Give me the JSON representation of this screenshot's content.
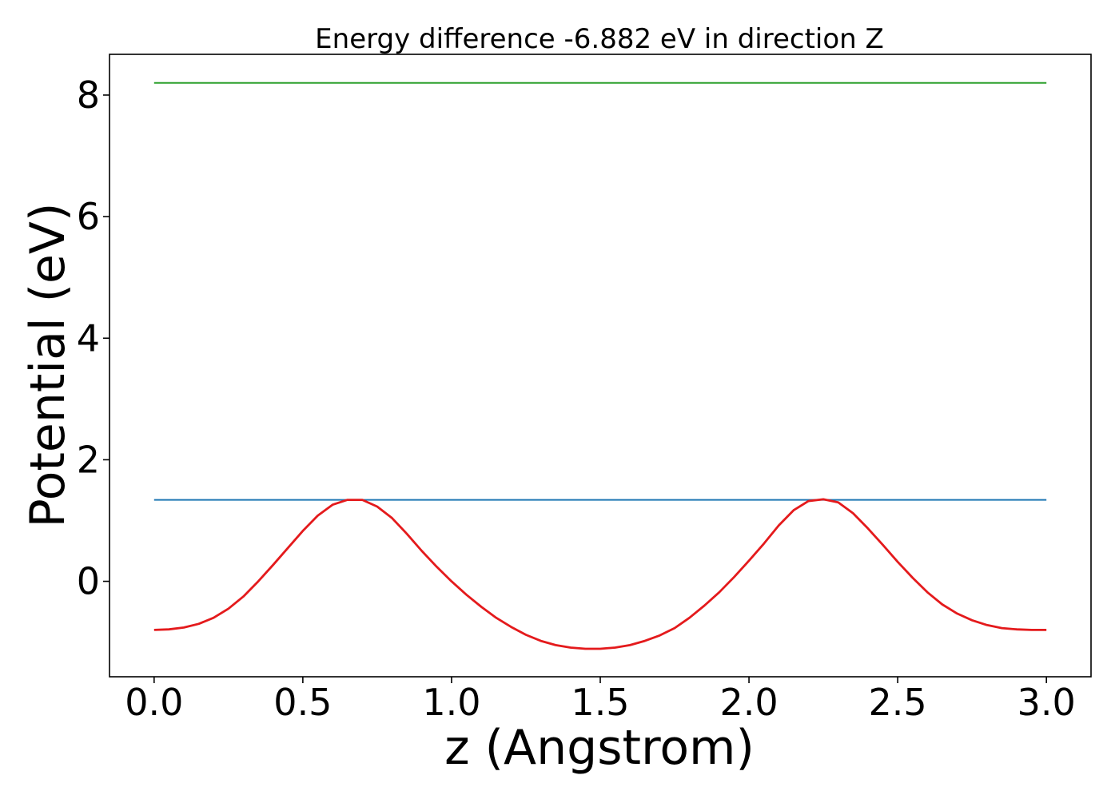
{
  "chart_data": {
    "type": "line",
    "title": "Energy difference -6.882 eV in direction Z",
    "xlabel": "z (Angstrom)",
    "ylabel": "Potential (eV)",
    "xlim": [
      -0.15,
      3.15
    ],
    "ylim": [
      -1.57,
      8.67
    ],
    "grid": false,
    "x_ticks": [
      0.0,
      0.5,
      1.0,
      1.5,
      2.0,
      2.5,
      3.0
    ],
    "x_tick_labels": [
      "0.0",
      "0.5",
      "1.0",
      "1.5",
      "2.0",
      "2.5",
      "3.0"
    ],
    "y_ticks": [
      0,
      2,
      4,
      6,
      8
    ],
    "y_tick_labels": [
      "0",
      "2",
      "4",
      "6",
      "8"
    ],
    "series": [
      {
        "color": "#2ca02c",
        "x": [
          0.0,
          3.0
        ],
        "y": [
          8.2,
          8.2
        ]
      },
      {
        "color": "#1f77b4",
        "x": [
          0.0,
          3.0
        ],
        "y": [
          1.34,
          1.34
        ]
      },
      {
        "color": "#e41a1c",
        "x": [
          0.0,
          0.05,
          0.1,
          0.15,
          0.2,
          0.25,
          0.3,
          0.35,
          0.4,
          0.45,
          0.5,
          0.55,
          0.6,
          0.65,
          0.7,
          0.75,
          0.8,
          0.85,
          0.9,
          0.95,
          1.0,
          1.05,
          1.1,
          1.15,
          1.2,
          1.25,
          1.3,
          1.35,
          1.4,
          1.45,
          1.5,
          1.55,
          1.6,
          1.65,
          1.7,
          1.75,
          1.8,
          1.85,
          1.9,
          1.95,
          2.0,
          2.05,
          2.1,
          2.15,
          2.2,
          2.25,
          2.3,
          2.35,
          2.4,
          2.45,
          2.5,
          2.55,
          2.6,
          2.65,
          2.7,
          2.75,
          2.8,
          2.85,
          2.9,
          2.95,
          3.0
        ],
        "y": [
          -0.8,
          -0.79,
          -0.76,
          -0.7,
          -0.6,
          -0.45,
          -0.25,
          0.0,
          0.27,
          0.55,
          0.83,
          1.08,
          1.26,
          1.34,
          1.34,
          1.23,
          1.04,
          0.78,
          0.5,
          0.24,
          0.0,
          -0.22,
          -0.42,
          -0.6,
          -0.75,
          -0.88,
          -0.98,
          -1.05,
          -1.09,
          -1.11,
          -1.11,
          -1.09,
          -1.05,
          -0.98,
          -0.89,
          -0.77,
          -0.6,
          -0.4,
          -0.18,
          0.07,
          0.34,
          0.62,
          0.92,
          1.17,
          1.32,
          1.35,
          1.3,
          1.12,
          0.87,
          0.6,
          0.32,
          0.06,
          -0.18,
          -0.38,
          -0.53,
          -0.64,
          -0.72,
          -0.77,
          -0.79,
          -0.8,
          -0.8
        ]
      }
    ]
  }
}
